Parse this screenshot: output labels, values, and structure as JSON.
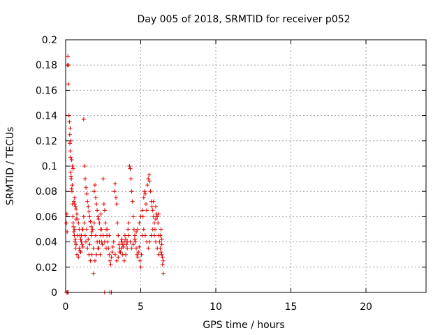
{
  "chart_data": {
    "type": "scatter",
    "title": "Day 005 of 2018, SRMTID for receiver p052",
    "xlabel": "GPS time / hours",
    "ylabel": "SRMTID / TECUs",
    "xlim": [
      0,
      24
    ],
    "ylim": [
      0,
      0.2
    ],
    "xticks": [
      0,
      5,
      10,
      15,
      20
    ],
    "xtick_labels": [
      "0",
      "5",
      "10",
      "15",
      "20"
    ],
    "yticks": [
      0,
      0.02,
      0.04,
      0.06,
      0.08,
      0.1,
      0.12,
      0.14,
      0.16,
      0.18,
      0.2
    ],
    "ytick_labels": [
      "0",
      "0.02",
      "0.04",
      "0.06",
      "0.08",
      "0.1",
      "0.12",
      "0.14",
      "0.16",
      "0.18",
      "0.2"
    ],
    "grid": true,
    "marker": "+",
    "color": "#e00000",
    "series": [
      {
        "points": [
          [
            0.05,
            0.0
          ],
          [
            0.12,
            0.0
          ],
          [
            0.18,
            0.0
          ],
          [
            2.6,
            0.0
          ],
          [
            2.95,
            0.0
          ],
          [
            3.05,
            0.0
          ],
          [
            0.05,
            0.055
          ],
          [
            0.08,
            0.062
          ],
          [
            0.1,
            0.048
          ],
          [
            0.12,
            0.18
          ],
          [
            0.15,
            0.187
          ],
          [
            0.18,
            0.165
          ],
          [
            0.2,
            0.18
          ],
          [
            0.22,
            0.14
          ],
          [
            0.25,
            0.135
          ],
          [
            0.27,
            0.125
          ],
          [
            0.28,
            0.118
          ],
          [
            0.3,
            0.112
          ],
          [
            0.32,
            0.107
          ],
          [
            0.34,
            0.095
          ],
          [
            0.36,
            0.092
          ],
          [
            0.38,
            0.09
          ],
          [
            0.4,
            0.082
          ],
          [
            0.42,
            0.08
          ],
          [
            0.44,
            0.085
          ],
          [
            0.46,
            0.07
          ],
          [
            0.48,
            0.06
          ],
          [
            0.5,
            0.055
          ],
          [
            0.52,
            0.052
          ],
          [
            0.55,
            0.048
          ],
          [
            0.58,
            0.045
          ],
          [
            0.6,
            0.05
          ],
          [
            0.62,
            0.04
          ],
          [
            0.65,
            0.042
          ],
          [
            0.68,
            0.035
          ],
          [
            0.7,
            0.038
          ],
          [
            0.3,
            0.13
          ],
          [
            0.35,
            0.12
          ],
          [
            0.4,
            0.105
          ],
          [
            0.45,
            0.1
          ],
          [
            0.5,
            0.098
          ],
          [
            0.55,
            0.072
          ],
          [
            0.6,
            0.075
          ],
          [
            0.65,
            0.068
          ],
          [
            0.7,
            0.066
          ],
          [
            0.75,
            0.062
          ],
          [
            0.8,
            0.058
          ],
          [
            0.85,
            0.055
          ],
          [
            0.9,
            0.05
          ],
          [
            0.95,
            0.045
          ],
          [
            1.0,
            0.042
          ],
          [
            1.05,
            0.04
          ],
          [
            1.1,
            0.038
          ],
          [
            1.15,
            0.036
          ],
          [
            1.2,
            0.137
          ],
          [
            1.25,
            0.1
          ],
          [
            1.3,
            0.09
          ],
          [
            1.35,
            0.083
          ],
          [
            1.4,
            0.078
          ],
          [
            1.45,
            0.072
          ],
          [
            1.5,
            0.068
          ],
          [
            1.55,
            0.064
          ],
          [
            1.6,
            0.06
          ],
          [
            1.65,
            0.056
          ],
          [
            1.7,
            0.052
          ],
          [
            1.75,
            0.048
          ],
          [
            0.75,
            0.03
          ],
          [
            0.85,
            0.028
          ],
          [
            0.95,
            0.033
          ],
          [
            1.05,
            0.045
          ],
          [
            1.15,
            0.05
          ],
          [
            1.25,
            0.055
          ],
          [
            1.35,
            0.04
          ],
          [
            1.45,
            0.035
          ],
          [
            1.55,
            0.03
          ],
          [
            1.65,
            0.025
          ],
          [
            1.75,
            0.03
          ],
          [
            1.85,
            0.035
          ],
          [
            1.9,
            0.08
          ],
          [
            1.95,
            0.085
          ],
          [
            2.0,
            0.075
          ],
          [
            2.05,
            0.07
          ],
          [
            2.1,
            0.065
          ],
          [
            2.15,
            0.06
          ],
          [
            2.2,
            0.058
          ],
          [
            2.25,
            0.055
          ],
          [
            2.3,
            0.05
          ],
          [
            2.35,
            0.045
          ],
          [
            2.4,
            0.04
          ],
          [
            2.45,
            0.038
          ],
          [
            1.85,
            0.015
          ],
          [
            1.95,
            0.025
          ],
          [
            2.05,
            0.03
          ],
          [
            2.15,
            0.035
          ],
          [
            2.25,
            0.04
          ],
          [
            2.35,
            0.062
          ],
          [
            2.5,
            0.09
          ],
          [
            2.55,
            0.07
          ],
          [
            2.6,
            0.065
          ],
          [
            2.65,
            0.055
          ],
          [
            2.7,
            0.05
          ],
          [
            2.75,
            0.045
          ],
          [
            2.8,
            0.04
          ],
          [
            2.85,
            0.035
          ],
          [
            2.9,
            0.03
          ],
          [
            2.95,
            0.025
          ],
          [
            3.0,
            0.022
          ],
          [
            3.05,
            0.028
          ],
          [
            3.1,
            0.032
          ],
          [
            3.15,
            0.036
          ],
          [
            3.2,
            0.04
          ],
          [
            3.25,
            0.08
          ],
          [
            3.3,
            0.086
          ],
          [
            3.35,
            0.075
          ],
          [
            3.4,
            0.07
          ],
          [
            3.45,
            0.055
          ],
          [
            3.5,
            0.045
          ],
          [
            3.55,
            0.038
          ],
          [
            3.6,
            0.035
          ],
          [
            3.65,
            0.032
          ],
          [
            3.7,
            0.04
          ],
          [
            3.75,
            0.042
          ],
          [
            3.8,
            0.038
          ],
          [
            3.85,
            0.036
          ],
          [
            3.9,
            0.04
          ],
          [
            3.95,
            0.045
          ],
          [
            4.0,
            0.042
          ],
          [
            4.05,
            0.038
          ],
          [
            4.1,
            0.035
          ],
          [
            4.15,
            0.05
          ],
          [
            4.2,
            0.055
          ],
          [
            4.25,
            0.1
          ],
          [
            4.3,
            0.098
          ],
          [
            4.35,
            0.09
          ],
          [
            4.4,
            0.08
          ],
          [
            4.45,
            0.072
          ],
          [
            4.5,
            0.06
          ],
          [
            4.55,
            0.05
          ],
          [
            4.6,
            0.045
          ],
          [
            4.65,
            0.04
          ],
          [
            4.7,
            0.035
          ],
          [
            4.75,
            0.03
          ],
          [
            4.8,
            0.028
          ],
          [
            4.85,
            0.032
          ],
          [
            4.9,
            0.036
          ],
          [
            4.95,
            0.025
          ],
          [
            5.0,
            0.02
          ],
          [
            5.05,
            0.03
          ],
          [
            5.1,
            0.045
          ],
          [
            5.15,
            0.06
          ],
          [
            5.2,
            0.075
          ],
          [
            5.25,
            0.08
          ],
          [
            5.3,
            0.078
          ],
          [
            5.35,
            0.07
          ],
          [
            5.4,
            0.065
          ],
          [
            5.45,
            0.085
          ],
          [
            5.5,
            0.09
          ],
          [
            5.55,
            0.093
          ],
          [
            5.6,
            0.088
          ],
          [
            5.65,
            0.08
          ],
          [
            5.7,
            0.072
          ],
          [
            5.75,
            0.068
          ],
          [
            5.8,
            0.065
          ],
          [
            5.85,
            0.06
          ],
          [
            5.9,
            0.055
          ],
          [
            5.95,
            0.05
          ],
          [
            6.0,
            0.058
          ],
          [
            6.05,
            0.062
          ],
          [
            6.1,
            0.06
          ],
          [
            6.15,
            0.055
          ],
          [
            6.2,
            0.045
          ],
          [
            6.25,
            0.04
          ],
          [
            6.3,
            0.035
          ],
          [
            6.35,
            0.032
          ],
          [
            6.4,
            0.03
          ],
          [
            6.45,
            0.028
          ],
          [
            6.5,
            0.025
          ],
          [
            6.5,
            0.015
          ],
          [
            6.45,
            0.022
          ],
          [
            6.4,
            0.038
          ],
          [
            3.3,
            0.03
          ],
          [
            3.4,
            0.025
          ],
          [
            3.5,
            0.028
          ],
          [
            3.6,
            0.032
          ],
          [
            3.7,
            0.035
          ],
          [
            3.8,
            0.03
          ],
          [
            3.9,
            0.025
          ],
          [
            4.0,
            0.03
          ],
          [
            4.1,
            0.04
          ],
          [
            4.2,
            0.045
          ],
          [
            4.3,
            0.04
          ],
          [
            4.4,
            0.035
          ],
          [
            4.5,
            0.038
          ],
          [
            4.6,
            0.042
          ],
          [
            4.7,
            0.048
          ],
          [
            4.8,
            0.05
          ],
          [
            4.9,
            0.055
          ],
          [
            5.0,
            0.06
          ],
          [
            5.1,
            0.065
          ],
          [
            5.2,
            0.05
          ],
          [
            5.3,
            0.045
          ],
          [
            5.4,
            0.04
          ],
          [
            5.5,
            0.035
          ],
          [
            5.6,
            0.04
          ],
          [
            5.7,
            0.045
          ],
          [
            5.8,
            0.05
          ],
          [
            5.9,
            0.045
          ],
          [
            6.0,
            0.04
          ],
          [
            6.1,
            0.035
          ],
          [
            6.2,
            0.03
          ],
          [
            6.3,
            0.045
          ],
          [
            6.35,
            0.05
          ],
          [
            6.4,
            0.042
          ],
          [
            6.2,
            0.062
          ],
          [
            6.0,
            0.068
          ],
          [
            5.85,
            0.072
          ],
          [
            0.6,
            0.07
          ],
          [
            0.7,
            0.058
          ],
          [
            0.8,
            0.045
          ],
          [
            0.9,
            0.035
          ],
          [
            1.0,
            0.032
          ],
          [
            1.1,
            0.05
          ],
          [
            1.2,
            0.06
          ],
          [
            1.3,
            0.045
          ],
          [
            1.4,
            0.05
          ],
          [
            1.5,
            0.042
          ],
          [
            1.6,
            0.038
          ],
          [
            1.7,
            0.045
          ],
          [
            1.8,
            0.05
          ],
          [
            1.9,
            0.055
          ],
          [
            2.0,
            0.045
          ],
          [
            2.1,
            0.04
          ],
          [
            2.2,
            0.035
          ],
          [
            2.3,
            0.03
          ],
          [
            2.4,
            0.05
          ],
          [
            2.5,
            0.045
          ],
          [
            2.6,
            0.04
          ],
          [
            2.7,
            0.035
          ],
          [
            2.8,
            0.05
          ],
          [
            2.9,
            0.045
          ]
        ]
      }
    ]
  }
}
